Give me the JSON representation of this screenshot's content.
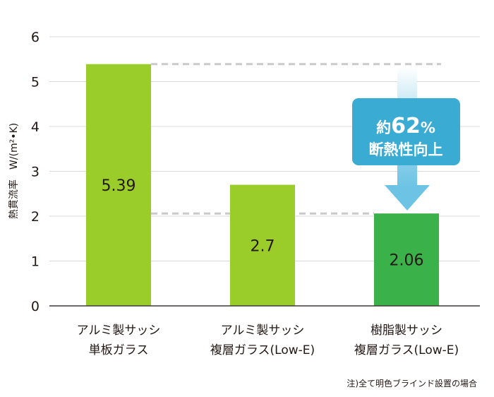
{
  "chart_data": {
    "type": "bar",
    "ylabel": "熱貫流率　W/(m²•K)",
    "ylim": [
      0,
      6
    ],
    "yticks": [
      "0",
      "1",
      "2",
      "3",
      "4",
      "5",
      "6"
    ],
    "categories": [
      [
        "アルミ製サッシ",
        "単板ガラス"
      ],
      [
        "アルミ製サッシ",
        "複層ガラス(Low-E)"
      ],
      [
        "樹脂製サッシ",
        "複層ガラス(Low-E)"
      ]
    ],
    "values": [
      5.39,
      2.7,
      2.06
    ],
    "value_labels": [
      "5.39",
      "2.7",
      "2.06"
    ],
    "bar_colors": [
      "#9acd2a",
      "#9acd2a",
      "#3bb14a"
    ],
    "reference_lines": [
      5.39,
      2.06
    ],
    "grid": true,
    "callout": {
      "line1_prefix": "約",
      "line1_number": "62",
      "line1_suffix": "%",
      "line2": "断熱性向上",
      "color": "#3aabd2"
    },
    "note": "注)全て明色ブラインド設置の場合"
  }
}
